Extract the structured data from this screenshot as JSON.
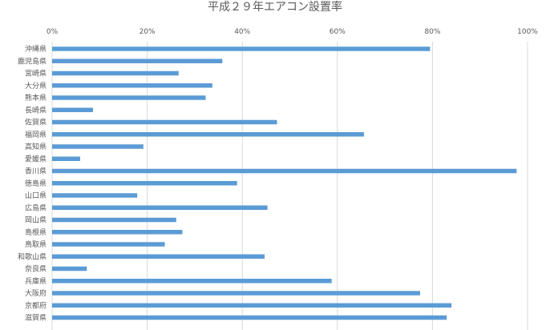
{
  "chart_data": {
    "type": "bar",
    "orientation": "horizontal",
    "title": "平成２９年エアコン設置率",
    "xlabel": "",
    "ylabel": "",
    "xlim": [
      0,
      100
    ],
    "ticks": [
      "0%",
      "20%",
      "40%",
      "60%",
      "80%",
      "100%"
    ],
    "tick_values": [
      0,
      20,
      40,
      60,
      80,
      100
    ],
    "grid": true,
    "legend": "none",
    "bar_color": "#5b9bd5",
    "categories": [
      "沖縄県",
      "鹿児島県",
      "宮崎県",
      "大分県",
      "熊本県",
      "長崎県",
      "佐賀県",
      "福岡県",
      "高知県",
      "愛媛県",
      "香川県",
      "徳島県",
      "山口県",
      "広島県",
      "岡山県",
      "島根県",
      "鳥取県",
      "和歌山県",
      "奈良県",
      "兵庫県",
      "大阪府",
      "京都府",
      "滋賀県"
    ],
    "values": [
      79.5,
      35.8,
      26.6,
      33.7,
      32.3,
      8.6,
      47.3,
      65.6,
      19.2,
      5.9,
      97.7,
      38.9,
      17.9,
      45.3,
      26.1,
      27.4,
      23.7,
      44.7,
      7.3,
      58.8,
      77.4,
      84.0,
      83.0
    ]
  }
}
